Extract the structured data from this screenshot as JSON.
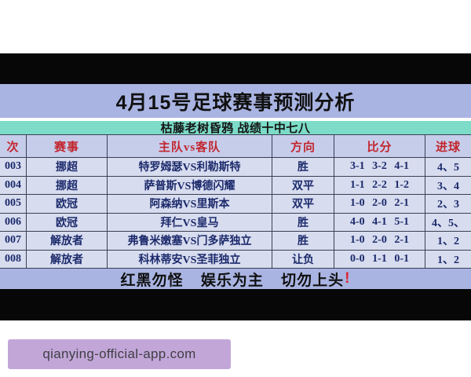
{
  "title": "4月15号足球赛事预测分析",
  "subtitle": "枯藤老树昏鸦 战绩十中七八",
  "table": {
    "headers": {
      "no": "次",
      "league": "赛事",
      "match": "主队vs客队",
      "direction": "方向",
      "score": "比分",
      "goals": "进球"
    },
    "rows": [
      {
        "no": "003",
        "league": "挪超",
        "match": "特罗姆瑟VS利勒斯特",
        "direction": "胜",
        "score": "3-1 3-2 4-1",
        "goals": "4、5"
      },
      {
        "no": "004",
        "league": "挪超",
        "match": "萨普斯VS博德闪耀",
        "direction": "双平",
        "score": "1-1 2-2 1-2",
        "goals": "3、4"
      },
      {
        "no": "005",
        "league": "欧冠",
        "match": "阿森纳VS里斯本",
        "direction": "双平",
        "score": "1-0 2-0 2-1",
        "goals": "2、3"
      },
      {
        "no": "006",
        "league": "欧冠",
        "match": "拜仁VS皇马",
        "direction": "胜",
        "score": "4-0 4-1 5-1",
        "goals": "4、5、"
      },
      {
        "no": "007",
        "league": "解放者",
        "match": "弗鲁米嫩塞VS门多萨独立",
        "direction": "胜",
        "score": "1-0 2-0 2-1",
        "goals": "1、2"
      },
      {
        "no": "008",
        "league": "解放者",
        "match": "科林蒂安VS圣菲独立",
        "direction": "让负",
        "score": "0-0 1-1 0-1",
        "goals": "1、2"
      }
    ]
  },
  "warning": {
    "text": "红黑勿怪 娱乐为主 切勿上头",
    "exclamation": "!"
  },
  "watermark": "qianying-official-app.com",
  "colors": {
    "banner_periwinkle": "#a9b4e2",
    "banner_teal": "#7cdcc8",
    "table_header_bg": "#c6cdeb",
    "table_row_bg": "#d7dcef",
    "grid_line": "#3a3f52",
    "header_text_red": "#c2262e",
    "data_text_navy": "#1c2a6b",
    "warning_exclamation_red": "#e0232d",
    "watermark_bg": "#c2a6d8",
    "black_bar": "#070707"
  }
}
